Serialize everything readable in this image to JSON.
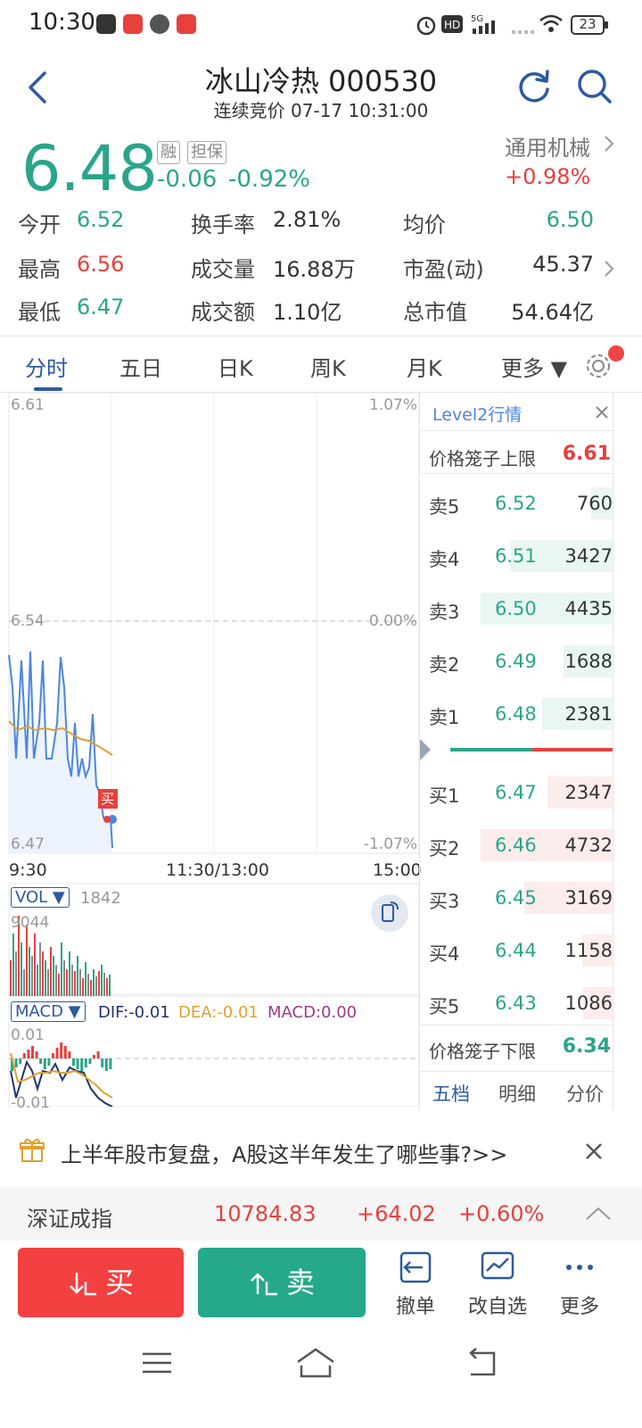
{
  "status_bar": {
    "time": "10:30",
    "battery": "23"
  },
  "header": {
    "title": "冰山冷热 000530",
    "subtitle": "连续竞价 07-17 10:31:00"
  },
  "quote": {
    "price": "6.48",
    "tags": [
      "融",
      "担保"
    ],
    "change": "-0.06",
    "change_pct": "-0.92%",
    "sector_name": "通用机械",
    "sector_pct": "+0.98%"
  },
  "stats": [
    [
      {
        "label": "今开",
        "value": "6.52",
        "color": "#2aa58a"
      },
      {
        "label": "换手率",
        "value": "2.81%",
        "color": "#333333"
      },
      {
        "label": "均价",
        "value": "6.50",
        "color": "#2aa58a"
      }
    ],
    [
      {
        "label": "最高",
        "value": "6.56",
        "color": "#e8403d"
      },
      {
        "label": "成交量",
        "value": "16.88万",
        "color": "#333333"
      },
      {
        "label": "市盈(动)",
        "value": "45.37",
        "color": "#333333"
      }
    ],
    [
      {
        "label": "最低",
        "value": "6.47",
        "color": "#2aa58a"
      },
      {
        "label": "成交额",
        "value": "1.10亿",
        "color": "#333333"
      },
      {
        "label": "总市值",
        "value": "54.64亿",
        "color": "#333333"
      }
    ]
  ],
  "tabs": [
    "分时",
    "五日",
    "日K",
    "周K",
    "月K",
    "更多 ▼"
  ],
  "chart": {
    "price_high": "6.61",
    "price_mid": "6.54",
    "price_low": "6.47",
    "pct_high": "1.07%",
    "pct_mid": "0.00%",
    "pct_low": "-1.07%",
    "time_start": "9:30",
    "time_mid": "11:30/13:00",
    "time_end": "15:00",
    "buy_marker": "买",
    "vol_label": "VOL ▼",
    "vol_value": "1842",
    "vol_max": "9044",
    "macd_label": "MACD ▼",
    "dif": "DIF:-0.01",
    "dea": "DEA:-0.01",
    "macd": "MACD:0.00",
    "macd_high": "0.01",
    "macd_low": "-0.01"
  },
  "book": {
    "title": "Level2行情",
    "upper_limit_label": "价格笼子上限",
    "upper_limit": "6.61",
    "lower_limit_label": "价格笼子下限",
    "lower_limit": "6.34",
    "sells": [
      {
        "label": "卖5",
        "price": "6.52",
        "volume": "760",
        "bar": 0.17
      },
      {
        "label": "卖4",
        "price": "6.51",
        "volume": "3427",
        "bar": 0.77
      },
      {
        "label": "卖3",
        "price": "6.50",
        "volume": "4435",
        "bar": 1.0
      },
      {
        "label": "卖2",
        "price": "6.49",
        "volume": "1688",
        "bar": 0.38
      },
      {
        "label": "卖1",
        "price": "6.48",
        "volume": "2381",
        "bar": 0.54
      }
    ],
    "buys": [
      {
        "label": "买1",
        "price": "6.47",
        "volume": "2347",
        "bar": 0.5
      },
      {
        "label": "买2",
        "price": "6.46",
        "volume": "4732",
        "bar": 1.0
      },
      {
        "label": "买3",
        "price": "6.45",
        "volume": "3169",
        "bar": 0.67
      },
      {
        "label": "买4",
        "price": "6.44",
        "volume": "1158",
        "bar": 0.24
      },
      {
        "label": "买5",
        "price": "6.43",
        "volume": "1086",
        "bar": 0.23
      }
    ],
    "tabs": [
      "五档",
      "明细",
      "分价"
    ]
  },
  "banner": {
    "text": "上半年股市复盘，A股这半年发生了哪些事?>>"
  },
  "index_bar": {
    "name": "深证成指",
    "value": "10784.83",
    "change": "+64.02",
    "pct": "+0.60%"
  },
  "actions": {
    "buy": "买",
    "sell": "卖",
    "cancel": "撤单",
    "watch": "改自选",
    "more": "更多"
  }
}
